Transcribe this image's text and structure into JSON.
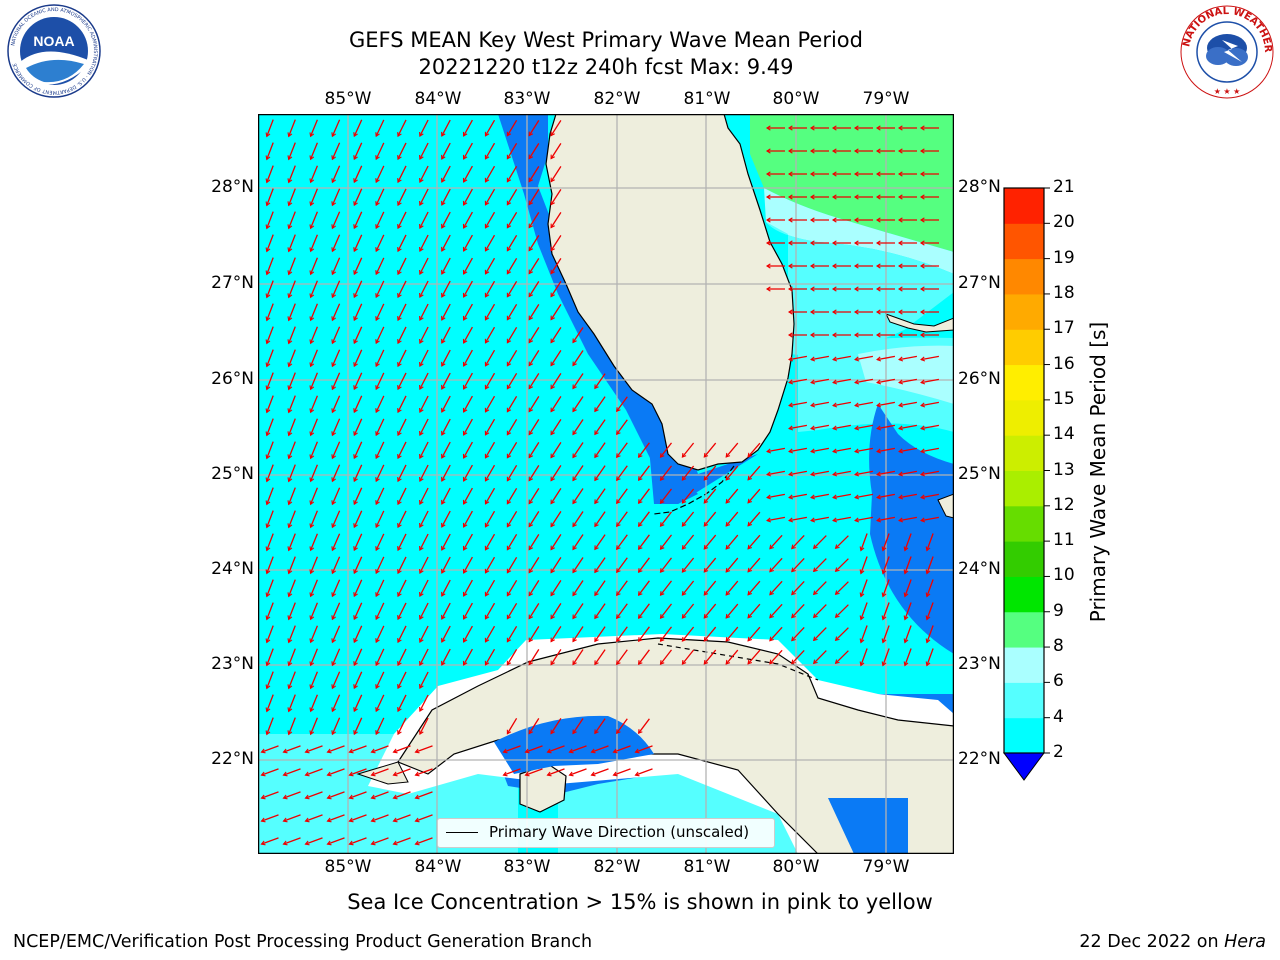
{
  "header": {
    "title_line1": "GEFS MEAN Key West Primary Wave Mean Period",
    "title_line2": "20221220 t12z 240h fcst   Max: 9.49"
  },
  "logos": {
    "noaa": {
      "text": "NOAA",
      "ring_text": "NATIONAL OCEANIC AND ATMOSPHERIC ADMINISTRATION · U.S. DEPARTMENT OF COMMERCE"
    },
    "nws": {
      "ring_text": "NATIONAL WEATHER SERVICE"
    }
  },
  "axes": {
    "lon_labels": [
      "85°W",
      "84°W",
      "83°W",
      "82°W",
      "81°W",
      "80°W",
      "79°W"
    ],
    "lat_labels": [
      "28°N",
      "27°N",
      "26°N",
      "25°N",
      "24°N",
      "23°N",
      "22°N"
    ],
    "lon_range": [
      -86.0,
      -78.25
    ],
    "lat_range": [
      21.0,
      28.75
    ]
  },
  "legend": {
    "label": "Primary Wave Direction (unscaled)"
  },
  "colorbar": {
    "label": "Primary Wave Mean Period [s]",
    "ticks": [
      "2",
      "4",
      "6",
      "8",
      "9",
      "10",
      "11",
      "12",
      "13",
      "14",
      "15",
      "16",
      "17",
      "18",
      "19",
      "20",
      "21"
    ],
    "levels": [
      2,
      4,
      6,
      8,
      9,
      10,
      11,
      12,
      13,
      14,
      15,
      16,
      17,
      18,
      19,
      20,
      21
    ],
    "colors": [
      "#0a7af5",
      "#00ffff",
      "#55ffff",
      "#aaffff",
      "#55ff80",
      "#00e600",
      "#33cc00",
      "#66dd00",
      "#aaee00",
      "#ccee00",
      "#eeee00",
      "#ffee00",
      "#ffcc00",
      "#ffaa00",
      "#ff8800",
      "#ff5500",
      "#ff2200",
      "#ff0000"
    ],
    "under_color": "#0000ff"
  },
  "map_colors": {
    "land": "#eeeedd",
    "coast": "#000000",
    "grid": "#b3b3b3",
    "arrow": "#ee0000",
    "period_2_4": "#0a7af5",
    "period_4_6": "#00ffff",
    "period_6_8": "#55ffff",
    "period_8_9": "#aaffff",
    "period_9_10": "#55ff80",
    "no_data": "#ffffff"
  },
  "notes": {
    "ice": "Sea Ice Concentration > 15% is shown in pink to yellow"
  },
  "footer": {
    "left": "NCEP/EMC/Verification Post Processing Product Generation Branch",
    "right_date": "22 Dec 2022 on ",
    "right_host": "Hera"
  }
}
